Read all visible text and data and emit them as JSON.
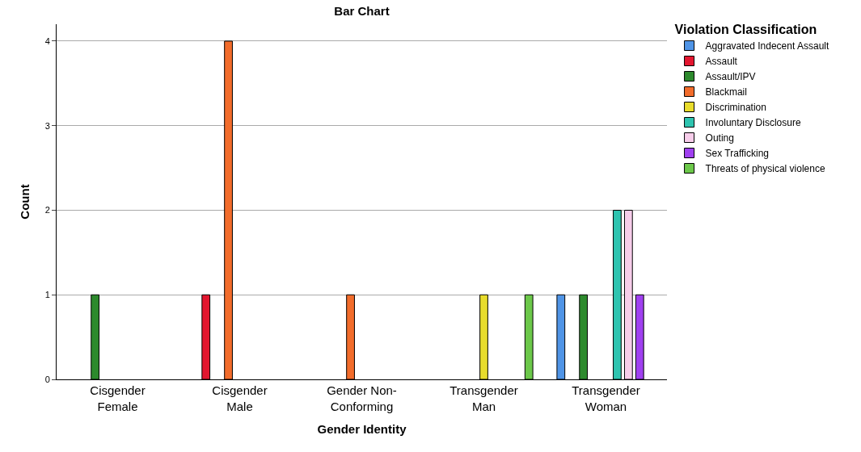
{
  "chart_data": {
    "type": "bar",
    "title": "Bar Chart",
    "xlabel": "Gender Identity",
    "ylabel": "Count",
    "legend_title": "Violation Classification",
    "categories": [
      "Cisgender\nFemale",
      "Cisgender\nMale",
      "Gender Non-\nConforming",
      "Transgender\nMan",
      "Transgender\nWoman"
    ],
    "series": [
      {
        "name": "Aggravated Indecent Assault",
        "color": "#4f94e6",
        "values": [
          null,
          null,
          null,
          null,
          1
        ]
      },
      {
        "name": "Assault",
        "color": "#e3162f",
        "values": [
          null,
          1,
          null,
          null,
          null
        ]
      },
      {
        "name": "Assault/IPV",
        "color": "#2d8a2d",
        "values": [
          1,
          null,
          null,
          null,
          1
        ]
      },
      {
        "name": "Blackmail",
        "color": "#f26c2b",
        "values": [
          null,
          4,
          1,
          null,
          null
        ]
      },
      {
        "name": "Discrimination",
        "color": "#e8dc2c",
        "values": [
          null,
          null,
          null,
          1,
          null
        ]
      },
      {
        "name": "Involuntary Disclosure",
        "color": "#2ec4b0",
        "values": [
          null,
          null,
          null,
          null,
          2
        ]
      },
      {
        "name": "Outing",
        "color": "#f7cdea",
        "values": [
          null,
          null,
          null,
          null,
          2
        ]
      },
      {
        "name": "Sex Trafficking",
        "color": "#a040f0",
        "values": [
          null,
          null,
          null,
          null,
          1
        ]
      },
      {
        "name": "Threats of physical violence",
        "color": "#6cc84a",
        "values": [
          null,
          null,
          null,
          1,
          null
        ]
      }
    ],
    "ylim": [
      0,
      4.2
    ],
    "yticks": [
      0,
      1,
      2,
      3,
      4
    ],
    "grid": "y",
    "legend": "top right"
  }
}
